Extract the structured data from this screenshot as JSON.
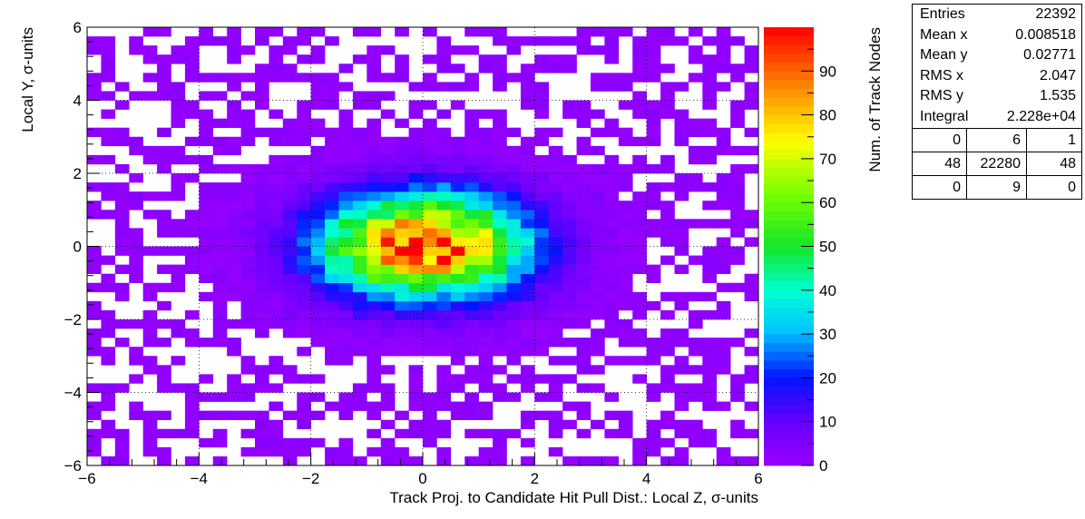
{
  "chart_data": {
    "type": "heatmap",
    "title": "",
    "xlabel": "Track Proj. to Candidate Hit Pull Dist.: Local Z, σ-units",
    "ylabel": "Local Y, σ-units",
    "zlabel": "Num. of Track Nodes",
    "xlim": [
      -6,
      6
    ],
    "ylim": [
      -6,
      6
    ],
    "zlim": [
      0,
      100
    ],
    "x_ticks": [
      "−6",
      "−4",
      "−2",
      "0",
      "2",
      "4",
      "6"
    ],
    "y_ticks": [
      "−6",
      "−4",
      "−2",
      "0",
      "2",
      "4",
      "6"
    ],
    "z_ticks": [
      "0",
      "10",
      "20",
      "30",
      "40",
      "50",
      "60",
      "70",
      "80",
      "90"
    ],
    "bins": {
      "nx": 48,
      "ny": 48
    },
    "distribution": {
      "mean_x": 0.008518,
      "mean_y": 0.02771,
      "rms_x": 2.047,
      "rms_y": 1.535,
      "peak": 97
    },
    "grid": true,
    "palette": "rainbow (violet low → red high)"
  },
  "stats": {
    "rows": [
      {
        "label": "Entries",
        "value": "22392"
      },
      {
        "label": "Mean x",
        "value": "0.008518"
      },
      {
        "label": "Mean y",
        "value": "0.02771"
      },
      {
        "label": "RMS x",
        "value": "2.047"
      },
      {
        "label": "RMS y",
        "value": "1.535"
      },
      {
        "label": "Integral",
        "value": "2.228e+04"
      }
    ],
    "grid": [
      [
        "0",
        "6",
        "1"
      ],
      [
        "48",
        "22280",
        "48"
      ],
      [
        "0",
        "9",
        "0"
      ]
    ]
  }
}
